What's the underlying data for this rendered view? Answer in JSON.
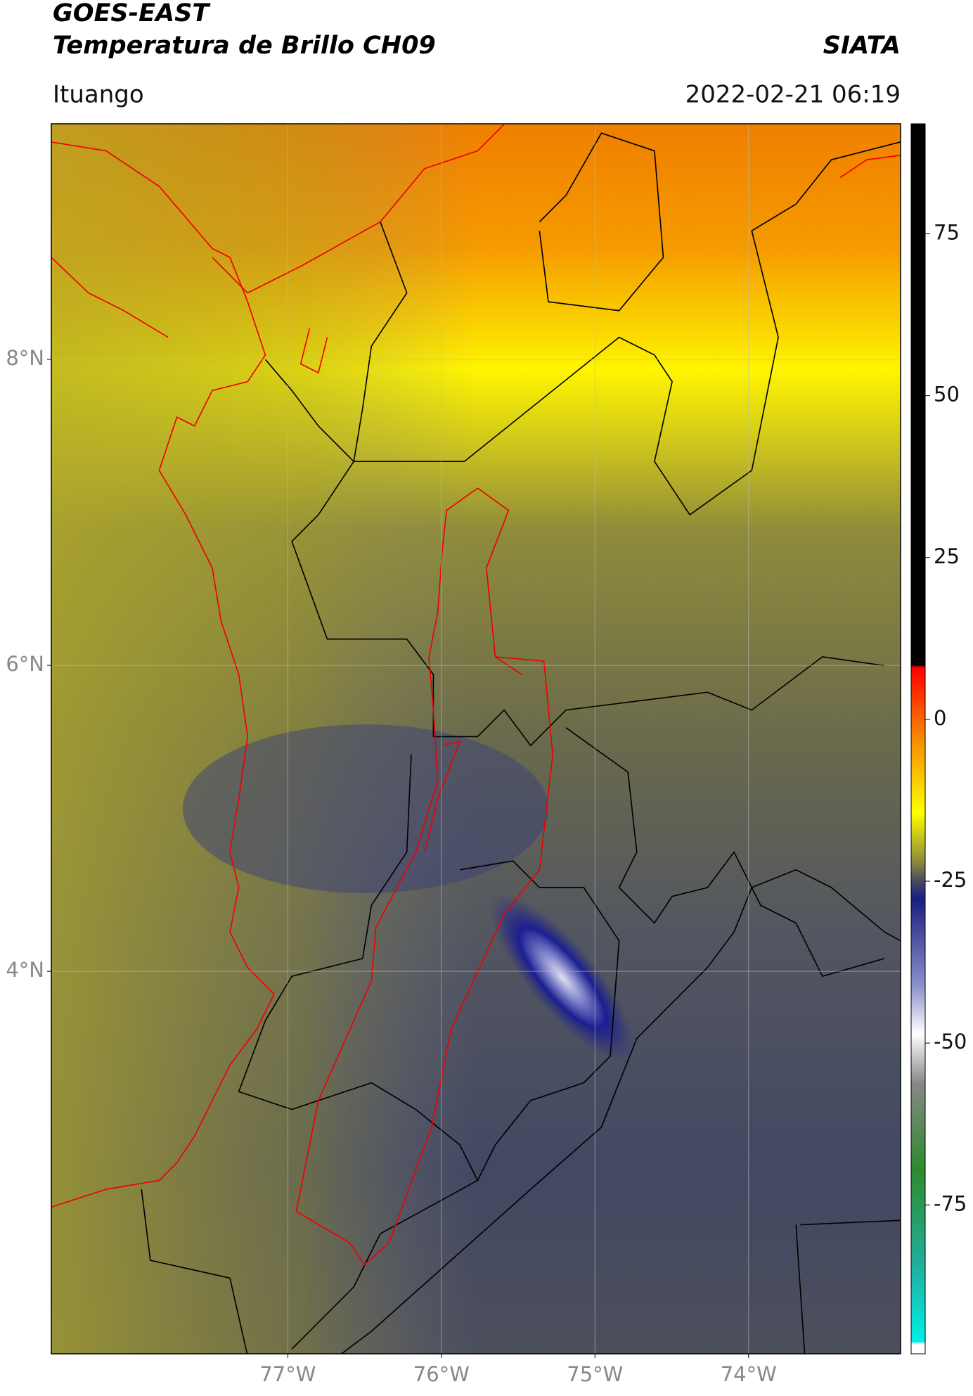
{
  "header": {
    "title": "GOES-EAST",
    "subtitle": "Temperatura de Brillo CH09",
    "organization": "SIATA",
    "location": "Ituango",
    "timestamp": "2022-02-21 06:19"
  },
  "map": {
    "xlim": [
      -78.54,
      -73.01
    ],
    "ylim": [
      1.5,
      9.54
    ],
    "xticks": [
      {
        "value": -77,
        "label": "77°W"
      },
      {
        "value": -76,
        "label": "76°W"
      },
      {
        "value": -75,
        "label": "75°W"
      },
      {
        "value": -74,
        "label": "74°W"
      }
    ],
    "yticks": [
      {
        "value": 8,
        "label": "8°N"
      },
      {
        "value": 6,
        "label": "6°N"
      },
      {
        "value": 4,
        "label": "4°N"
      }
    ],
    "grid": true
  },
  "colorbar": {
    "lim": [
      -98,
      92
    ],
    "ticks": [
      75,
      50,
      25,
      0,
      -25,
      -50,
      -75
    ]
  }
}
